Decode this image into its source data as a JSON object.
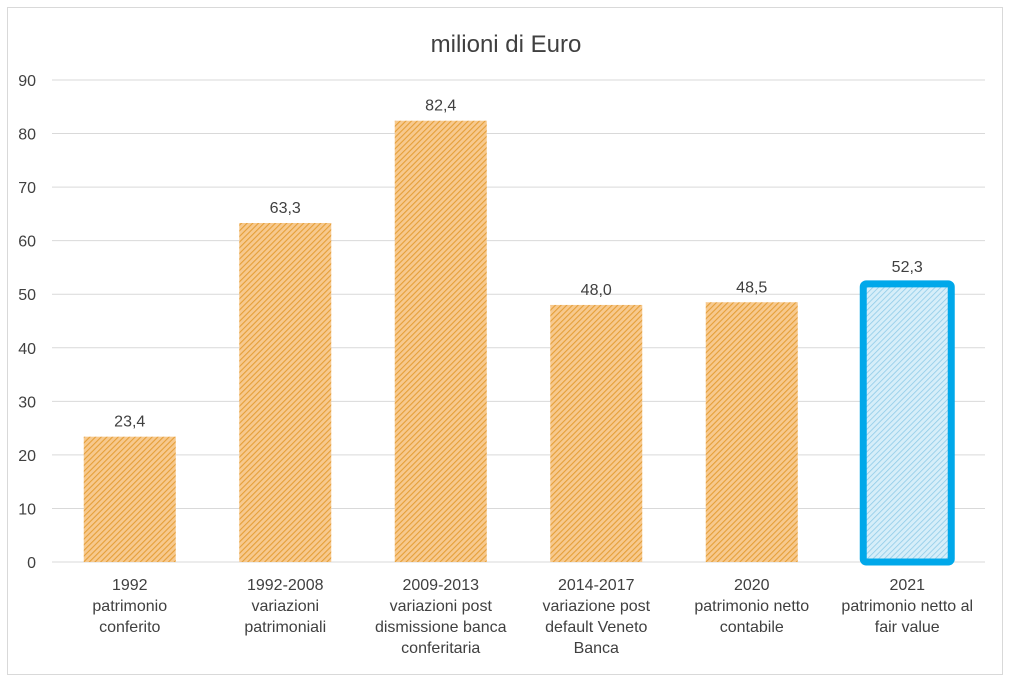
{
  "chart_data": {
    "type": "bar",
    "title": "milioni di Euro",
    "xlabel": "",
    "ylabel": "",
    "ylim": [
      0,
      90
    ],
    "yticks": [
      0,
      10,
      20,
      30,
      40,
      50,
      60,
      70,
      80,
      90
    ],
    "grid": true,
    "legend": "none",
    "categories": [
      [
        "1992",
        "patrimonio",
        "conferito"
      ],
      [
        "1992-2008",
        "variazioni",
        "patrimoniali"
      ],
      [
        "2009-2013",
        "variazioni post",
        "dismissione banca",
        "conferitaria"
      ],
      [
        "2014-2017",
        "variazione post",
        "default Veneto",
        "Banca"
      ],
      [
        "2020",
        "patrimonio netto",
        "contabile"
      ],
      [
        "2021",
        "patrimonio netto al",
        "fair value"
      ]
    ],
    "values": [
      23.4,
      63.3,
      82.4,
      48.0,
      48.5,
      52.3
    ],
    "data_labels": [
      "23,4",
      "63,3",
      "82,4",
      "48,0",
      "48,5",
      "52,3"
    ],
    "highlight_index": 5
  },
  "colors": {
    "bar_fill": "#f4b183",
    "bar_hatch": "#e6a33a",
    "highlight_fill": "#bde3f5",
    "highlight_hatch": "#9fd0ea",
    "highlight_border": "#00a8ea",
    "gridline": "#d9d9d9",
    "axis_text": "#404040",
    "title_text": "#404040"
  }
}
